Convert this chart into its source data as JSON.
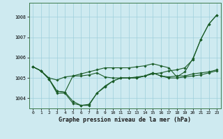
{
  "title": "Graphe pression niveau de la mer (hPa)",
  "bg_color": "#ceeaf0",
  "grid_color": "#9ecfdb",
  "line_color": "#1a5c28",
  "marker_color": "#1a5c28",
  "xlim": [
    -0.5,
    23.5
  ],
  "ylim": [
    1003.5,
    1008.7
  ],
  "xticks": [
    0,
    1,
    2,
    3,
    4,
    5,
    6,
    7,
    8,
    9,
    10,
    11,
    12,
    13,
    14,
    15,
    16,
    17,
    18,
    19,
    20,
    21,
    22,
    23
  ],
  "yticks": [
    1004,
    1005,
    1006,
    1007,
    1008
  ],
  "series": [
    [
      1005.55,
      1005.35,
      1005.0,
      1004.9,
      1005.05,
      1005.1,
      1005.1,
      1005.15,
      1005.25,
      1005.05,
      1005.0,
      1005.0,
      1005.0,
      1005.05,
      1005.1,
      1005.2,
      1005.25,
      1005.35,
      1005.4,
      1005.5,
      1005.9,
      1006.9,
      1007.65,
      1008.1
    ],
    [
      1005.55,
      1005.35,
      1004.95,
      1004.25,
      1004.25,
      1003.75,
      1003.65,
      1003.65,
      1004.25,
      1004.55,
      1004.85,
      1005.0,
      1005.0,
      1005.0,
      1005.1,
      1005.25,
      1005.1,
      1005.05,
      1005.1,
      1005.1,
      1005.2,
      1005.25,
      1005.3,
      1005.4
    ],
    [
      1005.55,
      1005.35,
      1004.95,
      1004.35,
      1004.3,
      1003.85,
      1003.65,
      1003.7,
      1004.25,
      1004.6,
      1004.85,
      1005.0,
      1005.0,
      1005.0,
      1005.1,
      1005.25,
      1005.1,
      1005.0,
      1005.0,
      1005.05,
      1005.1,
      1005.15,
      1005.25,
      1005.35
    ],
    [
      1005.55,
      1005.35,
      1004.95,
      1004.35,
      1004.3,
      1005.1,
      1005.2,
      1005.3,
      1005.4,
      1005.5,
      1005.5,
      1005.5,
      1005.5,
      1005.55,
      1005.6,
      1005.7,
      1005.6,
      1005.5,
      1005.05,
      1005.3,
      1005.95,
      1006.9,
      1007.65,
      1008.1
    ]
  ]
}
